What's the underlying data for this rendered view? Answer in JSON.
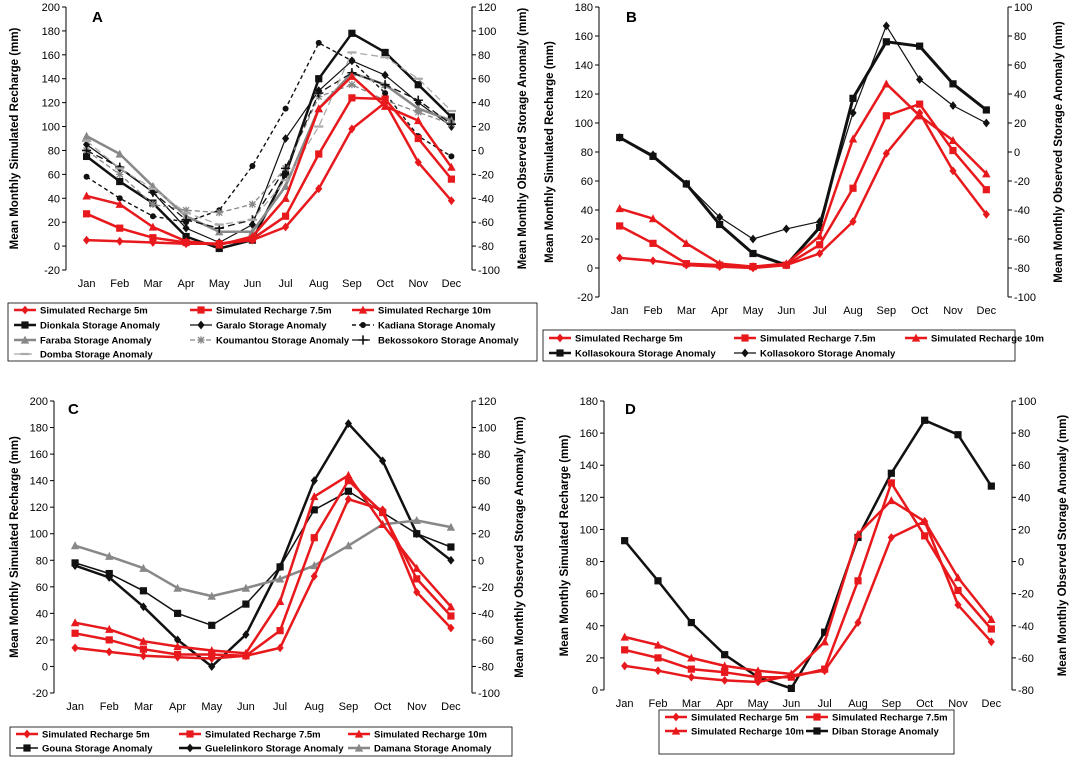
{
  "chart_data": [
    {
      "panel": "A",
      "type": "line",
      "months": [
        "Jan",
        "Feb",
        "Mar",
        "Apr",
        "May",
        "Jun",
        "Jul",
        "Aug",
        "Sep",
        "Oct",
        "Nov",
        "Dec"
      ],
      "ylabel_left": "Mean Monthly Simulated Recharge (mm)",
      "ylabel_right": "Mean Monthly Observed Storage Anomaly (mm)",
      "ylim_left": [
        -20,
        200
      ],
      "yticks_left": [
        -20,
        0,
        20,
        40,
        60,
        80,
        100,
        120,
        140,
        160,
        180,
        200
      ],
      "ylim_right": [
        -100,
        120
      ],
      "yticks_right": [
        -100,
        -80,
        -60,
        -40,
        -20,
        0,
        20,
        40,
        60,
        80,
        100,
        120
      ],
      "legend_cols": 3,
      "series": [
        {
          "name": "Simulated Recharge 5m",
          "axis": "left",
          "color": "#e8191c",
          "width": 2.5,
          "dash": "",
          "marker": "diamond",
          "values": [
            5,
            4,
            3,
            2,
            2,
            5,
            16,
            48,
            98,
            120,
            70,
            38
          ]
        },
        {
          "name": "Simulated Recharge 7.5m",
          "axis": "left",
          "color": "#e8191c",
          "width": 2.5,
          "dash": "",
          "marker": "square",
          "values": [
            27,
            15,
            7,
            3,
            2,
            6,
            25,
            77,
            124,
            123,
            90,
            56
          ]
        },
        {
          "name": "Simulated Recharge 10m",
          "axis": "left",
          "color": "#e8191c",
          "width": 2.5,
          "dash": "",
          "marker": "triangle",
          "values": [
            42,
            35,
            16,
            4,
            1,
            8,
            40,
            115,
            142,
            117,
            105,
            66
          ]
        },
        {
          "name": "Dionkala Storage Anomaly",
          "axis": "right",
          "color": "#111111",
          "width": 2.5,
          "dash": "",
          "marker": "square",
          "values": [
            -5,
            -26,
            -44,
            -72,
            -82,
            -75,
            -20,
            60,
            98,
            82,
            55,
            28
          ]
        },
        {
          "name": "Garalo Storage Anomaly",
          "axis": "right",
          "color": "#111111",
          "width": 1.2,
          "dash": "",
          "marker": "diamond",
          "values": [
            5,
            -15,
            -35,
            -65,
            -77,
            -62,
            10,
            50,
            75,
            63,
            40,
            20
          ]
        },
        {
          "name": "Kadiana Storage Anomaly",
          "axis": "right",
          "color": "#111111",
          "width": 1.4,
          "dash": "4,3",
          "marker": "circle",
          "values": [
            -22,
            -40,
            -55,
            -60,
            -50,
            -13,
            35,
            90,
            75,
            48,
            12,
            -5
          ]
        },
        {
          "name": "Faraba Storage Anomaly",
          "axis": "right",
          "color": "#888888",
          "width": 2.5,
          "dash": "",
          "marker": "triangle",
          "values": [
            12,
            -3,
            -30,
            -55,
            -68,
            -68,
            -30,
            35,
            65,
            55,
            35,
            25
          ]
        },
        {
          "name": "Koumantou Storage Anomaly",
          "axis": "right",
          "color": "#888888",
          "width": 1.3,
          "dash": "5,3",
          "marker": "asterisk",
          "values": [
            0,
            -20,
            -45,
            -50,
            -52,
            -45,
            -15,
            45,
            55,
            42,
            32,
            22
          ]
        },
        {
          "name": "Bekossokoro Storage Anomaly",
          "axis": "right",
          "color": "#111111",
          "width": 1.3,
          "dash": "7,4",
          "marker": "plus",
          "values": [
            0,
            -14,
            -35,
            -58,
            -65,
            -58,
            -15,
            48,
            65,
            55,
            42,
            22
          ]
        },
        {
          "name": "Domba Storage Anomaly",
          "axis": "right",
          "color": "#aaaaaa",
          "width": 1.3,
          "dash": "7,4",
          "marker": "dash",
          "values": [
            8,
            -15,
            -32,
            -52,
            -62,
            -58,
            -25,
            20,
            82,
            78,
            60,
            33
          ]
        }
      ]
    },
    {
      "panel": "B",
      "type": "line",
      "months": [
        "Jan",
        "Feb",
        "Mar",
        "Apr",
        "May",
        "Jun",
        "Jul",
        "Aug",
        "Sep",
        "Oct",
        "Nov",
        "Dec"
      ],
      "ylabel_left": "Mean Monthly Simulated Recharge (mm)",
      "ylabel_right": "Mean Monthly Observed Storage Anomaly (mm)",
      "ylim_left": [
        -20,
        180
      ],
      "yticks_left": [
        -20,
        0,
        20,
        40,
        60,
        80,
        100,
        120,
        140,
        160,
        180
      ],
      "ylim_right": [
        -100,
        100
      ],
      "yticks_right": [
        -100,
        -80,
        -60,
        -40,
        -20,
        0,
        20,
        40,
        60,
        80,
        100
      ],
      "legend_cols": 3,
      "series": [
        {
          "name": "Simulated Recharge 5m",
          "axis": "left",
          "color": "#e8191c",
          "width": 2.5,
          "dash": "",
          "marker": "diamond",
          "values": [
            7,
            5,
            2,
            1,
            0,
            2,
            10,
            32,
            79,
            107,
            67,
            37
          ]
        },
        {
          "name": "Simulated Recharge 7.5m",
          "axis": "left",
          "color": "#e8191c",
          "width": 2.5,
          "dash": "",
          "marker": "square",
          "values": [
            29,
            17,
            3,
            2,
            1,
            2,
            16,
            55,
            105,
            113,
            81,
            54
          ]
        },
        {
          "name": "Simulated Recharge 10m",
          "axis": "left",
          "color": "#e8191c",
          "width": 2.5,
          "dash": "",
          "marker": "triangle",
          "values": [
            41,
            34,
            17,
            3,
            1,
            3,
            22,
            89,
            127,
            105,
            88,
            65
          ]
        },
        {
          "name": "Kollasokoura Storage Anomaly",
          "axis": "right",
          "color": "#111111",
          "width": 3,
          "dash": "",
          "marker": "square",
          "values": [
            10,
            -3,
            -22,
            -50,
            -70,
            -78,
            -52,
            37,
            76,
            73,
            47,
            29
          ]
        },
        {
          "name": "Kollasokoro Storage Anomaly",
          "axis": "right",
          "color": "#111111",
          "width": 1.2,
          "dash": "",
          "marker": "diamond",
          "values": [
            10,
            -2,
            -22,
            -45,
            -60,
            -53,
            -48,
            27,
            87,
            50,
            32,
            20
          ]
        }
      ]
    },
    {
      "panel": "C",
      "type": "line",
      "months": [
        "Jan",
        "Feb",
        "Mar",
        "Apr",
        "May",
        "Jun",
        "Jul",
        "Aug",
        "Sep",
        "Oct",
        "Nov",
        "Dec"
      ],
      "ylabel_left": "Mean Monthly Simulated Recharge (mm)",
      "ylabel_right": "Mean Monthly Observed Storage Anomaly (mm)",
      "ylim_left": [
        -20,
        200
      ],
      "yticks_left": [
        -20,
        0,
        20,
        40,
        60,
        80,
        100,
        120,
        140,
        160,
        180,
        200
      ],
      "ylim_right": [
        -100,
        120
      ],
      "yticks_right": [
        -100,
        -80,
        -60,
        -40,
        -20,
        0,
        20,
        40,
        60,
        80,
        100,
        120
      ],
      "legend_cols": 3,
      "series": [
        {
          "name": "Simulated Recharge 5m",
          "axis": "left",
          "color": "#e8191c",
          "width": 2.5,
          "dash": "",
          "marker": "diamond",
          "values": [
            14,
            11,
            8,
            7,
            6,
            8,
            14,
            68,
            126,
            118,
            56,
            29
          ]
        },
        {
          "name": "Simulated Recharge 7.5m",
          "axis": "left",
          "color": "#e8191c",
          "width": 2.5,
          "dash": "",
          "marker": "square",
          "values": [
            25,
            20,
            13,
            9,
            9,
            8,
            27,
            97,
            140,
            116,
            66,
            38
          ]
        },
        {
          "name": "Simulated Recharge 10m",
          "axis": "left",
          "color": "#e8191c",
          "width": 2.5,
          "dash": "",
          "marker": "triangle",
          "values": [
            33,
            28,
            19,
            15,
            12,
            10,
            49,
            128,
            144,
            107,
            74,
            45
          ]
        },
        {
          "name": "Gouna Storage Anomaly",
          "axis": "right",
          "color": "#111111",
          "width": 1.5,
          "dash": "",
          "marker": "square",
          "values": [
            -2,
            -10,
            -23,
            -40,
            -49,
            -33,
            -5,
            38,
            52,
            36,
            20,
            10
          ]
        },
        {
          "name": "Guelelinkoro Storage Anomaly",
          "axis": "right",
          "color": "#111111",
          "width": 2.5,
          "dash": "",
          "marker": "diamond",
          "values": [
            -4,
            -13,
            -35,
            -60,
            -80,
            -56,
            -5,
            60,
            103,
            75,
            20,
            0
          ]
        },
        {
          "name": "Damana Storage Anomaly",
          "axis": "right",
          "color": "#888888",
          "width": 2.5,
          "dash": "",
          "marker": "triangle",
          "values": [
            11,
            3,
            -6,
            -21,
            -27,
            -21,
            -14,
            -4,
            11,
            27,
            30,
            25
          ]
        }
      ]
    },
    {
      "panel": "D",
      "type": "line",
      "months": [
        "Jan",
        "Feb",
        "Mar",
        "Apr",
        "May",
        "Jun",
        "Jul",
        "Aug",
        "Sep",
        "Oct",
        "Nov",
        "Dec"
      ],
      "ylabel_left": "Mean Monthly Simulated Recharge (mm)",
      "ylabel_right": "Mean Monthly Observed Storage Anomaly (mm)",
      "ylim_left": [
        0,
        180
      ],
      "yticks_left": [
        0,
        20,
        40,
        60,
        80,
        100,
        120,
        140,
        160,
        180
      ],
      "ylim_right": [
        -80,
        100
      ],
      "yticks_right": [
        -80,
        -60,
        -40,
        -20,
        0,
        20,
        40,
        60,
        80,
        100
      ],
      "legend_cols": 2,
      "series": [
        {
          "name": "Simulated Recharge 5m",
          "axis": "left",
          "color": "#e8191c",
          "width": 2.5,
          "dash": "",
          "marker": "diamond",
          "values": [
            15,
            12,
            8,
            6,
            5,
            9,
            12,
            42,
            95,
            105,
            53,
            30
          ]
        },
        {
          "name": "Simulated Recharge 7.5m",
          "axis": "left",
          "color": "#e8191c",
          "width": 2.5,
          "dash": "",
          "marker": "square",
          "values": [
            25,
            20,
            13,
            11,
            8,
            8,
            13,
            68,
            129,
            96,
            62,
            38
          ]
        },
        {
          "name": "Simulated Recharge 10m",
          "axis": "left",
          "color": "#e8191c",
          "width": 2.5,
          "dash": "",
          "marker": "triangle",
          "values": [
            33,
            28,
            20,
            15,
            12,
            10,
            30,
            97,
            118,
            105,
            70,
            44
          ]
        },
        {
          "name": "Diban Storage Anomaly",
          "axis": "right",
          "color": "#111111",
          "width": 2.5,
          "dash": "",
          "marker": "square",
          "values": [
            13,
            -12,
            -38,
            -58,
            -72,
            -79,
            -44,
            15,
            55,
            88,
            79,
            47
          ]
        }
      ]
    }
  ]
}
